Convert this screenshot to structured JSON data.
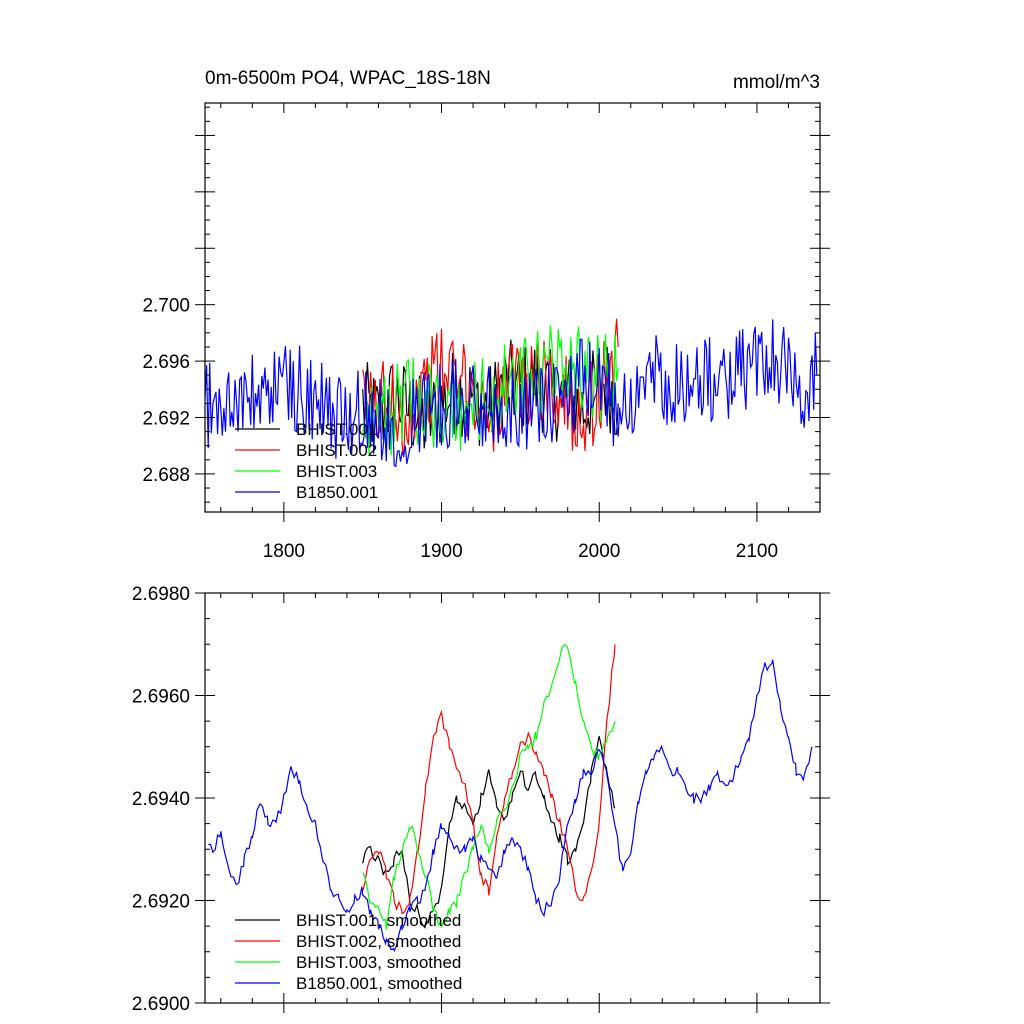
{
  "chart_data": [
    {
      "type": "line",
      "title": "0m-6500m PO4, WPAC_18S-18N",
      "units": "mmol/m^3",
      "xlim": [
        1750,
        2140
      ],
      "ylim": [
        2.6853,
        2.7143
      ],
      "xticks": [
        "1800",
        "1900",
        "2000",
        "2100"
      ],
      "yticks": [
        "2.688",
        "2.692",
        "2.696",
        "2.700"
      ],
      "legend_position": "bottom-left",
      "series": [
        {
          "name": "BHIST.001",
          "color": "#000000",
          "x": [
            1850,
            1860,
            1870,
            1880,
            1890,
            1900,
            1910,
            1920,
            1930,
            1940,
            1950,
            1960,
            1970,
            1980,
            1990,
            2000,
            2005,
            2012
          ],
          "y": [
            2.693,
            2.692,
            2.6935,
            2.6925,
            2.6915,
            2.693,
            2.694,
            2.6935,
            2.6925,
            2.6945,
            2.694,
            2.6945,
            2.6935,
            2.6935,
            2.6925,
            2.6945,
            2.6945,
            2.693
          ]
        },
        {
          "name": "BHIST.002",
          "color": "#ff0000",
          "x": [
            1850,
            1860,
            1870,
            1880,
            1890,
            1900,
            1910,
            1920,
            1930,
            1940,
            1950,
            1960,
            1970,
            1980,
            1990,
            2000,
            2005,
            2012
          ],
          "y": [
            2.6925,
            2.693,
            2.693,
            2.692,
            2.6945,
            2.6955,
            2.6945,
            2.6935,
            2.6925,
            2.6935,
            2.6945,
            2.695,
            2.6945,
            2.693,
            2.6925,
            2.6935,
            2.6955,
            2.697
          ]
        },
        {
          "name": "BHIST.003",
          "color": "#00ff00",
          "x": [
            1850,
            1860,
            1870,
            1880,
            1890,
            1900,
            1910,
            1920,
            1930,
            1940,
            1950,
            1960,
            1970,
            1980,
            1990,
            2000,
            2005,
            2012
          ],
          "y": [
            2.6925,
            2.692,
            2.6925,
            2.693,
            2.6935,
            2.692,
            2.692,
            2.693,
            2.6935,
            2.694,
            2.6945,
            2.695,
            2.6955,
            2.6965,
            2.6955,
            2.6945,
            2.695,
            2.6955
          ]
        },
        {
          "name": "B1850.001",
          "color": "#0000ff",
          "x": [
            1750,
            1760,
            1770,
            1780,
            1790,
            1800,
            1810,
            1820,
            1830,
            1840,
            1850,
            1860,
            1870,
            1880,
            1890,
            1900,
            1910,
            1920,
            1930,
            1940,
            1950,
            1960,
            1970,
            1980,
            1990,
            2000,
            2010,
            2020,
            2030,
            2040,
            2050,
            2060,
            2070,
            2080,
            2090,
            2100,
            2110,
            2120,
            2130,
            2138
          ],
          "y": [
            2.6932,
            2.6925,
            2.6935,
            2.6932,
            2.6938,
            2.6945,
            2.694,
            2.693,
            2.6922,
            2.692,
            2.6925,
            2.6918,
            2.6915,
            2.692,
            2.6925,
            2.693,
            2.6932,
            2.6925,
            2.6928,
            2.693,
            2.693,
            2.6925,
            2.693,
            2.6935,
            2.6945,
            2.694,
            2.693,
            2.6938,
            2.6945,
            2.6948,
            2.6945,
            2.6942,
            2.6945,
            2.6948,
            2.6952,
            2.696,
            2.6965,
            2.6955,
            2.6945,
            2.695
          ]
        }
      ]
    },
    {
      "type": "line",
      "xlim": [
        1750,
        2140
      ],
      "ylim": [
        2.69,
        2.698
      ],
      "xticks": [],
      "yticks": [
        "2.6900",
        "2.6920",
        "2.6940",
        "2.6960",
        "2.6980"
      ],
      "legend_position": "bottom-left",
      "series": [
        {
          "name": "BHIST.001, smoothed",
          "color": "#000000",
          "x": [
            1850,
            1855,
            1860,
            1865,
            1870,
            1875,
            1880,
            1885,
            1890,
            1895,
            1900,
            1905,
            1910,
            1915,
            1920,
            1925,
            1930,
            1935,
            1940,
            1945,
            1950,
            1955,
            1960,
            1965,
            1970,
            1975,
            1980,
            1985,
            1990,
            1995,
            2000,
            2005,
            2010
          ],
          "y": [
            2.6928,
            2.693,
            2.6928,
            2.6925,
            2.6928,
            2.693,
            2.692,
            2.6918,
            2.6915,
            2.6918,
            2.6922,
            2.6935,
            2.694,
            2.6938,
            2.6935,
            2.694,
            2.6945,
            2.6938,
            2.6935,
            2.694,
            2.6945,
            2.6942,
            2.6945,
            2.694,
            2.6935,
            2.6932,
            2.6928,
            2.693,
            2.6935,
            2.6945,
            2.6952,
            2.6945,
            2.6938
          ]
        },
        {
          "name": "BHIST.002, smoothed",
          "color": "#ff0000",
          "x": [
            1850,
            1855,
            1860,
            1865,
            1870,
            1875,
            1880,
            1885,
            1890,
            1895,
            1900,
            1905,
            1910,
            1915,
            1920,
            1925,
            1930,
            1935,
            1940,
            1945,
            1950,
            1955,
            1960,
            1965,
            1970,
            1975,
            1980,
            1985,
            1990,
            1995,
            2000,
            2005,
            2010
          ],
          "y": [
            2.6922,
            2.6928,
            2.693,
            2.6925,
            2.692,
            2.6918,
            2.692,
            2.693,
            2.6942,
            2.6952,
            2.6956,
            2.695,
            2.6945,
            2.6942,
            2.6935,
            2.6925,
            2.6922,
            2.6932,
            2.694,
            2.6945,
            2.695,
            2.6952,
            2.6948,
            2.6945,
            2.694,
            2.6935,
            2.693,
            2.6922,
            2.692,
            2.6925,
            2.6935,
            2.6955,
            2.697
          ]
        },
        {
          "name": "BHIST.003, smoothed",
          "color": "#00ff00",
          "x": [
            1850,
            1855,
            1860,
            1865,
            1870,
            1875,
            1880,
            1885,
            1890,
            1895,
            1900,
            1905,
            1910,
            1915,
            1920,
            1925,
            1930,
            1935,
            1940,
            1945,
            1950,
            1955,
            1960,
            1965,
            1970,
            1975,
            1980,
            1985,
            1990,
            1995,
            2000,
            2005,
            2010
          ],
          "y": [
            2.6925,
            2.692,
            2.6918,
            2.6915,
            2.6925,
            2.693,
            2.6935,
            2.693,
            2.6925,
            2.6918,
            2.6915,
            2.6918,
            2.692,
            2.6925,
            2.693,
            2.6935,
            2.693,
            2.6935,
            2.6938,
            2.6942,
            2.6948,
            2.695,
            2.6952,
            2.6958,
            2.6962,
            2.6968,
            2.697,
            2.6962,
            2.6955,
            2.695,
            2.6948,
            2.6952,
            2.6955
          ]
        },
        {
          "name": "B1850.001, smoothed",
          "color": "#0000ff",
          "x": [
            1752,
            1755,
            1760,
            1765,
            1770,
            1775,
            1780,
            1785,
            1790,
            1795,
            1800,
            1805,
            1810,
            1815,
            1820,
            1825,
            1830,
            1835,
            1840,
            1845,
            1850,
            1855,
            1860,
            1865,
            1870,
            1875,
            1880,
            1885,
            1890,
            1895,
            1900,
            1905,
            1910,
            1915,
            1920,
            1925,
            1930,
            1935,
            1940,
            1945,
            1950,
            1955,
            1960,
            1965,
            1970,
            1975,
            1980,
            1985,
            1990,
            1995,
            2000,
            2005,
            2010,
            2015,
            2020,
            2025,
            2030,
            2035,
            2040,
            2045,
            2050,
            2055,
            2060,
            2065,
            2070,
            2075,
            2080,
            2085,
            2090,
            2095,
            2100,
            2105,
            2110,
            2115,
            2120,
            2125,
            2130,
            2135
          ],
          "y": [
            2.6932,
            2.693,
            2.6933,
            2.6926,
            2.6923,
            2.6928,
            2.6933,
            2.6939,
            2.6935,
            2.6935,
            2.694,
            2.6946,
            2.6943,
            2.6938,
            2.6935,
            2.6928,
            2.6922,
            2.692,
            2.6918,
            2.692,
            2.6922,
            2.6918,
            2.6915,
            2.6912,
            2.691,
            2.6915,
            2.6918,
            2.692,
            2.6922,
            2.693,
            2.6935,
            2.6932,
            2.693,
            2.693,
            2.6932,
            2.6928,
            2.6926,
            2.6924,
            2.693,
            2.6932,
            2.693,
            2.6926,
            2.692,
            2.6918,
            2.692,
            2.6925,
            2.6935,
            2.694,
            2.6945,
            2.6945,
            2.695,
            2.6945,
            2.6935,
            2.6925,
            2.693,
            2.694,
            2.6945,
            2.6948,
            2.695,
            2.6945,
            2.6945,
            2.6942,
            2.694,
            2.694,
            2.6942,
            2.6944,
            2.6942,
            2.6944,
            2.6948,
            2.6952,
            2.696,
            2.6966,
            2.6966,
            2.6958,
            2.6952,
            2.6945,
            2.6944,
            2.695
          ]
        }
      ]
    }
  ]
}
